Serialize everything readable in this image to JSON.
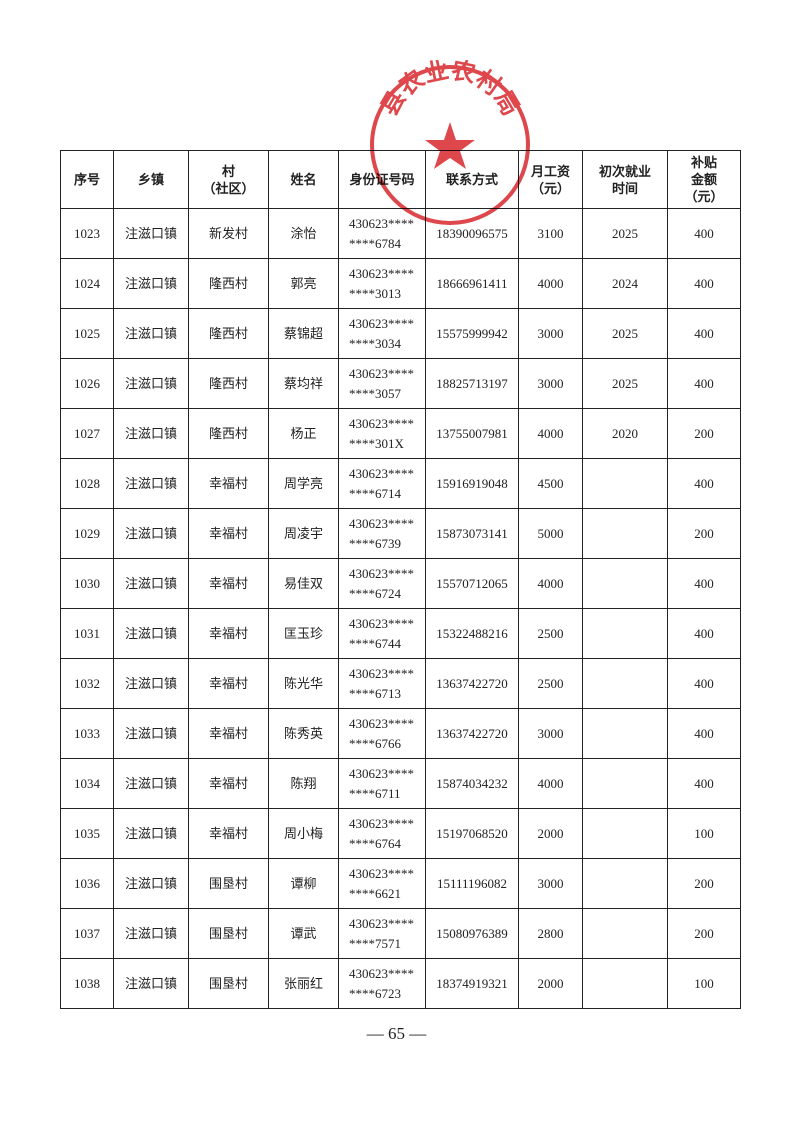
{
  "table": {
    "header": [
      [
        "序号"
      ],
      [
        "乡镇"
      ],
      [
        "村",
        "（社区）"
      ],
      [
        "姓名"
      ],
      [
        "身份证号码"
      ],
      [
        "联系方式"
      ],
      [
        "月工资",
        "（元）"
      ],
      [
        "初次就业",
        "时间"
      ],
      [
        "补贴",
        "金额",
        "（元）"
      ]
    ],
    "rows": [
      {
        "no": 1023,
        "town": "注滋口镇",
        "village": "新发村",
        "name": "涂怡",
        "id": [
          "430623****",
          "****6784"
        ],
        "phone": "18390096575",
        "salary": 3100,
        "year": 2025,
        "subsidy": 400
      },
      {
        "no": 1024,
        "town": "注滋口镇",
        "village": "隆西村",
        "name": "郭亮",
        "id": [
          "430623****",
          "****3013"
        ],
        "phone": "18666961411",
        "salary": 4000,
        "year": 2024,
        "subsidy": 400
      },
      {
        "no": 1025,
        "town": "注滋口镇",
        "village": "隆西村",
        "name": "蔡锦超",
        "id": [
          "430623****",
          "****3034"
        ],
        "phone": "15575999942",
        "salary": 3000,
        "year": 2025,
        "subsidy": 400
      },
      {
        "no": 1026,
        "town": "注滋口镇",
        "village": "隆西村",
        "name": "蔡均祥",
        "id": [
          "430623****",
          "****3057"
        ],
        "phone": "18825713197",
        "salary": 3000,
        "year": 2025,
        "subsidy": 400
      },
      {
        "no": 1027,
        "town": "注滋口镇",
        "village": "隆西村",
        "name": "杨正",
        "id": [
          "430623****",
          "****301X"
        ],
        "phone": "13755007981",
        "salary": 4000,
        "year": 2020,
        "subsidy": 200
      },
      {
        "no": 1028,
        "town": "注滋口镇",
        "village": "幸福村",
        "name": "周学亮",
        "id": [
          "430623****",
          "****6714"
        ],
        "phone": "15916919048",
        "salary": 4500,
        "subsidy": 400
      },
      {
        "no": 1029,
        "town": "注滋口镇",
        "village": "幸福村",
        "name": "周凌宇",
        "id": [
          "430623****",
          "****6739"
        ],
        "phone": "15873073141",
        "salary": 5000,
        "subsidy": 200
      },
      {
        "no": 1030,
        "town": "注滋口镇",
        "village": "幸福村",
        "name": "易佳双",
        "id": [
          "430623****",
          "****6724"
        ],
        "phone": "15570712065",
        "salary": 4000,
        "subsidy": 400
      },
      {
        "no": 1031,
        "town": "注滋口镇",
        "village": "幸福村",
        "name": "匡玉珍",
        "id": [
          "430623****",
          "****6744"
        ],
        "phone": "15322488216",
        "salary": 2500,
        "subsidy": 400
      },
      {
        "no": 1032,
        "town": "注滋口镇",
        "village": "幸福村",
        "name": "陈光华",
        "id": [
          "430623****",
          "****6713"
        ],
        "phone": "13637422720",
        "salary": 2500,
        "subsidy": 400
      },
      {
        "no": 1033,
        "town": "注滋口镇",
        "village": "幸福村",
        "name": "陈秀英",
        "id": [
          "430623****",
          "****6766"
        ],
        "phone": "13637422720",
        "salary": 3000,
        "subsidy": 400
      },
      {
        "no": 1034,
        "town": "注滋口镇",
        "village": "幸福村",
        "name": "陈翔",
        "id": [
          "430623****",
          "****6711"
        ],
        "phone": "15874034232",
        "salary": 4000,
        "subsidy": 400
      },
      {
        "no": 1035,
        "town": "注滋口镇",
        "village": "幸福村",
        "name": "周小梅",
        "id": [
          "430623****",
          "****6764"
        ],
        "phone": "15197068520",
        "salary": 2000,
        "subsidy": 100
      },
      {
        "no": 1036,
        "town": "注滋口镇",
        "village": "围垦村",
        "name": "谭柳",
        "id": [
          "430623****",
          "****6621"
        ],
        "phone": "15111196082",
        "salary": 3000,
        "subsidy": 200
      },
      {
        "no": 1037,
        "town": "注滋口镇",
        "village": "围垦村",
        "name": "谭武",
        "id": [
          "430623****",
          "****7571"
        ],
        "phone": "15080976389",
        "salary": 2800,
        "subsidy": 200
      },
      {
        "no": 1038,
        "town": "注滋口镇",
        "village": "围垦村",
        "name": "张丽红",
        "id": [
          "430623****",
          "****6723"
        ],
        "phone": "18374919321",
        "salary": 2000,
        "subsidy": 100
      }
    ]
  },
  "stamp": "县农业农村局",
  "page_number": "— 65 —"
}
